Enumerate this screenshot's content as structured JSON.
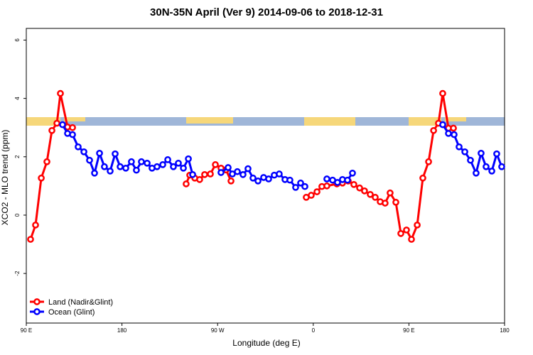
{
  "chart_data": {
    "type": "line",
    "title": "30N-35N April (Ver 9)   2014-09-06 to 2018-12-31",
    "x_label": "Longitude (deg E)",
    "y_label": "XCO2 - MLO trend (ppm)",
    "xlim": [
      90,
      540
    ],
    "ylim": [
      -3.7,
      6.4
    ],
    "xticks": [
      {
        "value": 90,
        "label": "90 E"
      },
      {
        "value": 180,
        "label": "180"
      },
      {
        "value": 270,
        "label": "90 W"
      },
      {
        "value": 360,
        "label": "0"
      },
      {
        "value": 450,
        "label": "90 E"
      },
      {
        "value": 540,
        "label": "180"
      }
    ],
    "yticks": [
      -2,
      0,
      2,
      4,
      6
    ],
    "legend": "bottom-left",
    "series": [
      {
        "name": "Land (Nadir&Glint)",
        "color": "#ff0000",
        "x": [
          94.0,
          98.7,
          104.1,
          109.4,
          114.1,
          118.8,
          122.1,
          128.8,
          133.5,
          null,
          240.4,
          243.8,
          248.5,
          253.1,
          257.8,
          263.2,
          267.9,
          273.2,
          277.9,
          282.6,
          null,
          353.4,
          358.1,
          363.5,
          368.1,
          372.8,
          382.2,
          387.5,
          392.9,
          398.2,
          403.6,
          408.2,
          413.6,
          418.3,
          423.0,
          427.6,
          432.3,
          437.7,
          442.4,
          447.7,
          452.4,
          457.8,
          463.1,
          468.5,
          473.2,
          477.8,
          481.8,
          487.2,
          491.9
        ],
        "values": [
          -0.83,
          -0.34,
          1.27,
          1.83,
          2.9,
          3.15,
          4.17,
          3.02,
          3.0,
          null,
          1.07,
          1.37,
          1.27,
          1.22,
          1.39,
          1.41,
          1.73,
          1.61,
          1.55,
          1.17,
          null,
          0.61,
          0.68,
          0.8,
          0.98,
          1.0,
          1.07,
          1.1,
          1.17,
          1.05,
          0.93,
          0.83,
          0.71,
          0.61,
          0.46,
          0.41,
          0.76,
          0.44,
          -0.63,
          -0.51,
          -0.83,
          -0.34,
          1.27,
          1.83,
          2.9,
          3.15,
          4.17,
          2.98,
          2.98
        ]
      },
      {
        "name": "Ocean (Glint)",
        "color": "#0000ff",
        "x": [
          124.1,
          128.8,
          133.5,
          138.8,
          144.2,
          149.5,
          154.2,
          158.9,
          163.5,
          168.9,
          173.6,
          178.3,
          183.6,
          188.9,
          193.6,
          198.3,
          203.7,
          208.3,
          213.0,
          218.4,
          223.1,
          228.4,
          233.1,
          237.8,
          242.5,
          246.5,
          null,
          273.2,
          279.9,
          283.9,
          288.6,
          293.9,
          298.6,
          303.3,
          308.0,
          313.3,
          318.0,
          323.3,
          328.0,
          333.4,
          338.0,
          343.4,
          348.1,
          352.1,
          null,
          372.8,
          378.2,
          382.8,
          387.5,
          392.2,
          396.9,
          null,
          481.8,
          487.2,
          492.5,
          497.2,
          502.6,
          507.9,
          513.2,
          517.9,
          522.6,
          528.0,
          532.6,
          537.3
        ],
        "values": [
          3.1,
          2.8,
          2.76,
          2.34,
          2.17,
          1.88,
          1.44,
          2.12,
          1.66,
          1.51,
          2.1,
          1.66,
          1.61,
          1.83,
          1.54,
          1.83,
          1.78,
          1.61,
          1.66,
          1.73,
          1.9,
          1.66,
          1.78,
          1.61,
          1.93,
          1.39,
          null,
          1.46,
          1.63,
          1.41,
          1.49,
          1.39,
          1.59,
          1.27,
          1.17,
          1.29,
          1.24,
          1.37,
          1.41,
          1.22,
          1.2,
          0.95,
          1.1,
          0.98,
          null,
          1.24,
          1.2,
          1.12,
          1.22,
          1.2,
          1.44,
          null,
          3.1,
          2.8,
          2.76,
          2.34,
          2.17,
          1.88,
          1.44,
          2.12,
          1.66,
          1.51,
          2.1,
          1.66
        ]
      }
    ]
  }
}
